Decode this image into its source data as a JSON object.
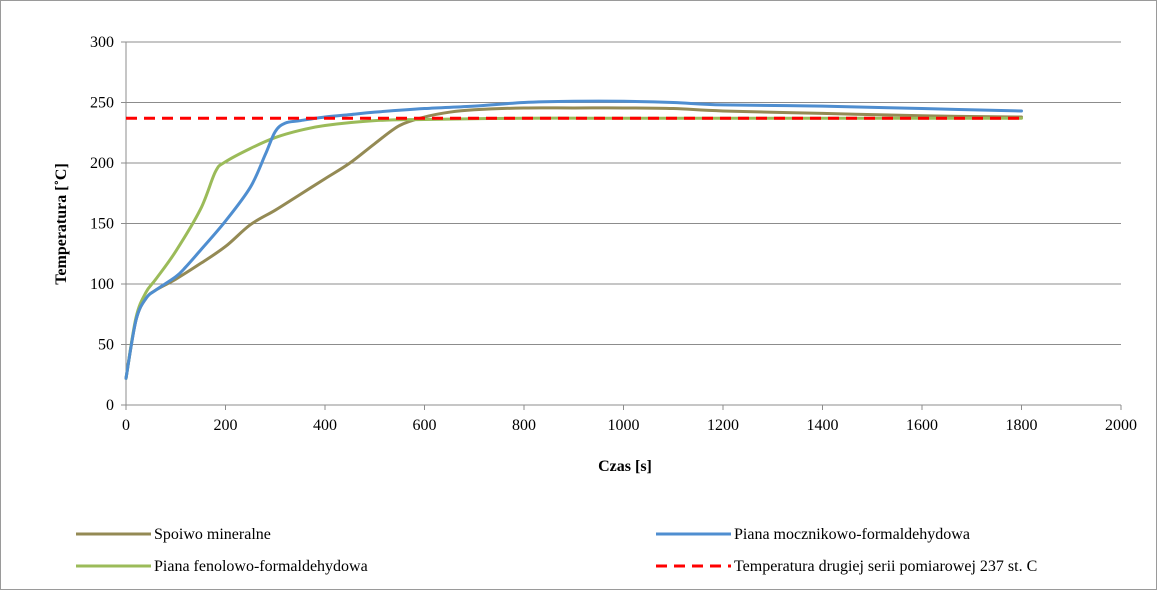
{
  "chart_data": {
    "type": "line",
    "title": "",
    "xlabel": "Czas [s]",
    "ylabel": "Temperatura [˚C]",
    "xlim": [
      0,
      2000
    ],
    "ylim": [
      0,
      300
    ],
    "xticks": [
      0,
      200,
      400,
      600,
      800,
      1000,
      1200,
      1400,
      1600,
      1800,
      2000
    ],
    "yticks": [
      0,
      50,
      100,
      150,
      200,
      250,
      300
    ],
    "grid": "horizontal",
    "legend_position": "bottom",
    "series": [
      {
        "name": "Spoiwo mineralne",
        "color": "#948A54",
        "dash": "solid",
        "points": [
          [
            0,
            22
          ],
          [
            20,
            70
          ],
          [
            40,
            88
          ],
          [
            60,
            95
          ],
          [
            100,
            104
          ],
          [
            150,
            117
          ],
          [
            200,
            131
          ],
          [
            250,
            149
          ],
          [
            300,
            161
          ],
          [
            350,
            174
          ],
          [
            400,
            187
          ],
          [
            450,
            200
          ],
          [
            500,
            216
          ],
          [
            550,
            231
          ],
          [
            600,
            238
          ],
          [
            650,
            242
          ],
          [
            700,
            244
          ],
          [
            800,
            245.5
          ],
          [
            900,
            245.5
          ],
          [
            1000,
            245.5
          ],
          [
            1100,
            245
          ],
          [
            1200,
            243
          ],
          [
            1400,
            241
          ],
          [
            1600,
            239
          ],
          [
            1800,
            238
          ]
        ]
      },
      {
        "name": "Piana mocznikowo-formaldehydowa",
        "color": "#4F8ED0",
        "dash": "solid",
        "points": [
          [
            0,
            22
          ],
          [
            20,
            70
          ],
          [
            40,
            88
          ],
          [
            60,
            95
          ],
          [
            100,
            106
          ],
          [
            120,
            114
          ],
          [
            150,
            128
          ],
          [
            200,
            152
          ],
          [
            250,
            180
          ],
          [
            280,
            207
          ],
          [
            300,
            226
          ],
          [
            320,
            233
          ],
          [
            350,
            235
          ],
          [
            400,
            238
          ],
          [
            450,
            240
          ],
          [
            500,
            242
          ],
          [
            600,
            245
          ],
          [
            700,
            247
          ],
          [
            800,
            250
          ],
          [
            900,
            251
          ],
          [
            1000,
            251
          ],
          [
            1100,
            250
          ],
          [
            1200,
            248
          ],
          [
            1400,
            247
          ],
          [
            1600,
            245
          ],
          [
            1800,
            243
          ]
        ]
      },
      {
        "name": "Piana fenolowo-formaldehydowa",
        "color": "#9BBB59",
        "dash": "solid",
        "points": [
          [
            0,
            22
          ],
          [
            20,
            72
          ],
          [
            40,
            93
          ],
          [
            60,
            104
          ],
          [
            100,
            127
          ],
          [
            150,
            162
          ],
          [
            180,
            193
          ],
          [
            200,
            201
          ],
          [
            250,
            212
          ],
          [
            300,
            221
          ],
          [
            350,
            227
          ],
          [
            400,
            231
          ],
          [
            500,
            235
          ],
          [
            600,
            236
          ],
          [
            800,
            237
          ],
          [
            1000,
            237
          ],
          [
            1200,
            237
          ],
          [
            1400,
            237
          ],
          [
            1600,
            237
          ],
          [
            1800,
            237
          ]
        ]
      },
      {
        "name": "Temperatura drugiej serii pomiarowej 237 st. C",
        "color": "#FF0000",
        "dash": "dashed",
        "points": [
          [
            0,
            237
          ],
          [
            1800,
            237
          ]
        ]
      }
    ]
  }
}
